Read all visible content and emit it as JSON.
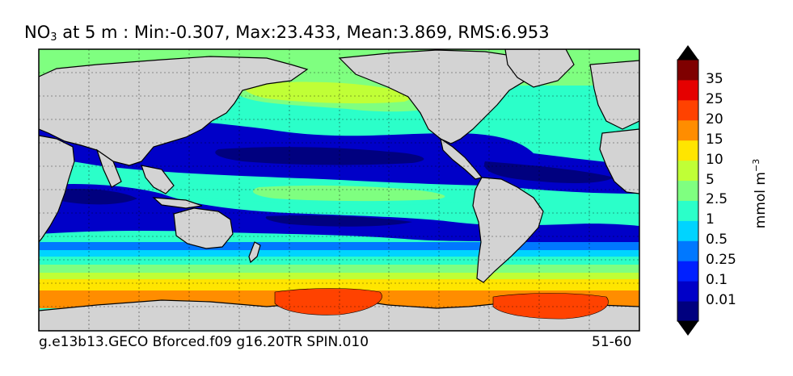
{
  "title": {
    "variable": "NO",
    "subscript": "3",
    "rest": " at 5 m : Min:-0.307, Max:23.433, Mean:3.869, RMS:6.953"
  },
  "footer": {
    "case_name": "g.e13b13.GECO Bforced.f09 g16.20TR SPIN.010",
    "years": "51-60"
  },
  "colorbar": {
    "unit_main": "mmol m",
    "unit_exp": "−3",
    "levels": [
      "0.01",
      "0.1",
      "0.25",
      "0.5",
      "1",
      "2.5",
      "5",
      "10",
      "15",
      "20",
      "25",
      "35"
    ],
    "colors": [
      "#00007f",
      "#0000c8",
      "#0020ff",
      "#0078ff",
      "#00d4ff",
      "#2bffc9",
      "#7fff80",
      "#c0ff36",
      "#ffe500",
      "#ff8d00",
      "#ff4200",
      "#e50000",
      "#7f0000"
    ]
  },
  "map": {
    "land_color": "#d3d3d3",
    "ocean_colors": {
      "deep_blue": "#0000c8",
      "navy": "#00007f",
      "blue": "#0020ff",
      "azure": "#0078ff",
      "cyan": "#00d4ff",
      "aqua": "#2bffc9",
      "green": "#7fff80",
      "yellowgreen": "#c0ff36",
      "yellow": "#ffe500",
      "orange": "#ff8d00",
      "redorange": "#ff4200"
    }
  }
}
